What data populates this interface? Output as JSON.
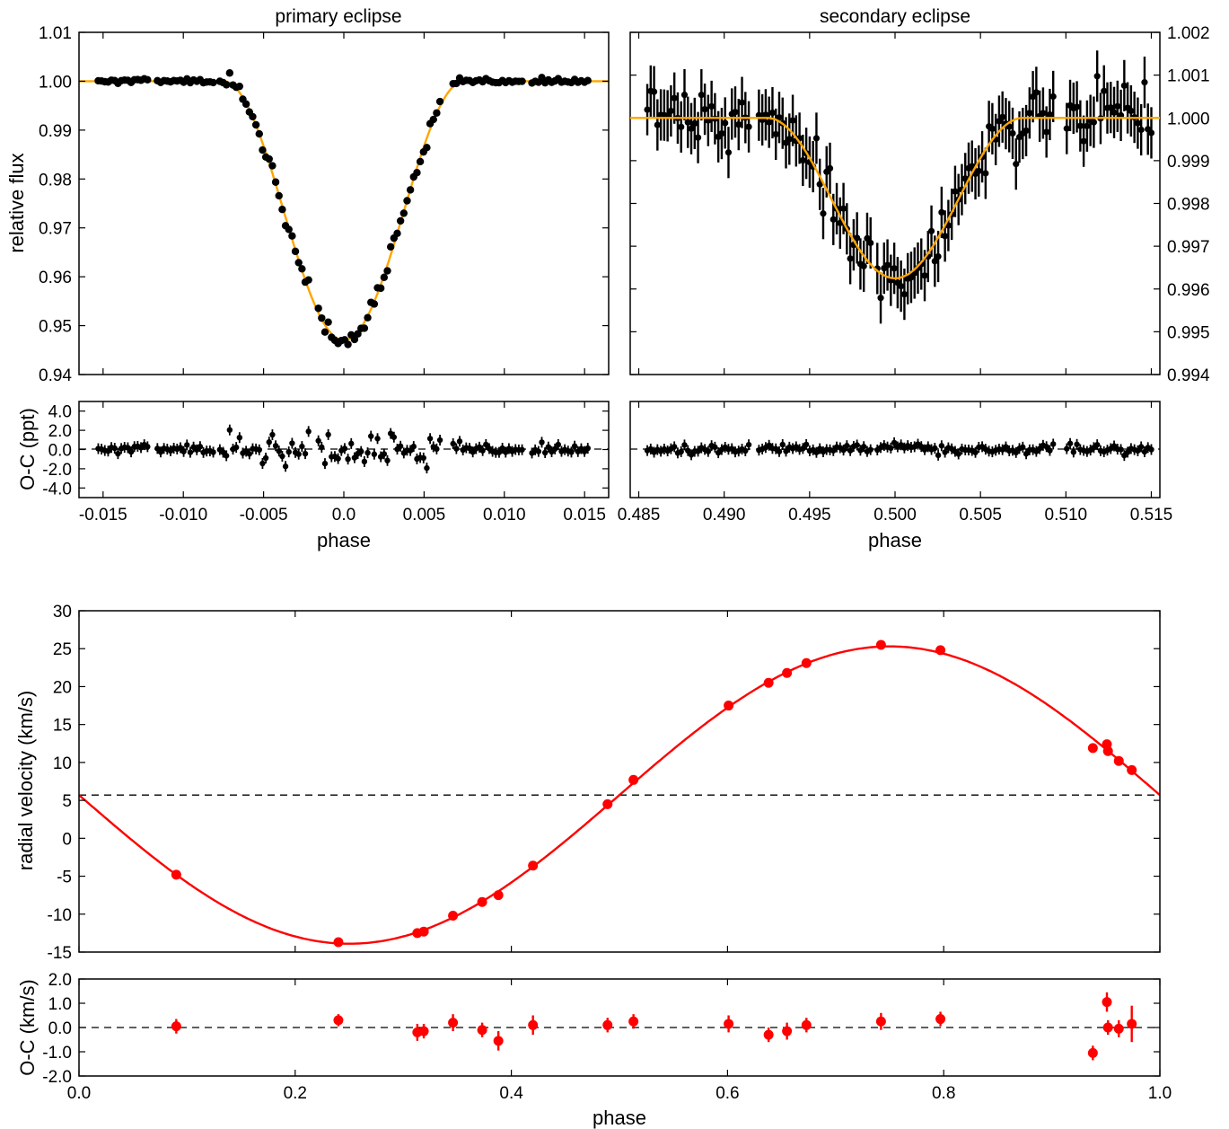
{
  "colors": {
    "model_orange": "#ffa500",
    "rv_red": "#ff0000",
    "points": "#000000"
  },
  "chart_data": [
    {
      "type": "scatter",
      "title": "primary eclipse",
      "xlabel": "phase",
      "ylabel": "relative flux",
      "xlim": [
        -0.0165,
        0.0165
      ],
      "ylim": [
        0.94,
        1.01
      ],
      "yticks": [
        "0.94",
        "0.95",
        "0.96",
        "0.97",
        "0.98",
        "0.99",
        "1.00",
        "1.01"
      ],
      "xticks": [
        "-0.015",
        "-0.010",
        "-0.005",
        "0.0",
        "0.005",
        "0.010",
        "0.015"
      ],
      "model": {
        "name": "eclipse model",
        "depth": 0.053,
        "center": 0.0,
        "half_width": 0.0075
      },
      "residual_panel": {
        "ylabel": "O-C (ppt)",
        "ylim": [
          -5,
          5
        ],
        "yticks": [
          "-4.0",
          "-2.0",
          "0.0",
          "2.0",
          "4.0"
        ]
      }
    },
    {
      "type": "scatter",
      "title": "secondary eclipse",
      "xlabel": "phase",
      "ylabel": "",
      "xlim": [
        0.4845,
        0.5155
      ],
      "ylim": [
        0.994,
        1.002
      ],
      "yticks": [
        "0.994",
        "0.995",
        "0.996",
        "0.997",
        "0.998",
        "0.999",
        "1.000",
        "1.001",
        "1.002"
      ],
      "xticks": [
        "0.485",
        "0.490",
        "0.495",
        "0.500",
        "0.505",
        "0.510",
        "0.515"
      ],
      "model": {
        "name": "eclipse model",
        "depth": 0.00375,
        "center": 0.5,
        "half_width": 0.0075
      },
      "residual_panel": {
        "ylabel": "",
        "ylim": [
          -5,
          5
        ]
      }
    },
    {
      "type": "scatter",
      "title": "",
      "xlabel": "phase",
      "ylabel": "radial velocity (km/s)",
      "xlim": [
        0.0,
        1.0
      ],
      "ylim": [
        -15,
        30
      ],
      "yticks": [
        "-15",
        "-10",
        "-5",
        "0",
        "5",
        "10",
        "15",
        "20",
        "25",
        "30"
      ],
      "xticks": [
        "0.0",
        "0.2",
        "0.4",
        "0.6",
        "0.8",
        "1.0"
      ],
      "gamma": 5.7,
      "model": {
        "name": "orbit model",
        "K": 19.6,
        "gamma": 5.7,
        "phase_of_max": 0.75
      },
      "points": {
        "x": [
          0.09,
          0.24,
          0.313,
          0.319,
          0.346,
          0.373,
          0.388,
          0.42,
          0.489,
          0.513,
          0.601,
          0.638,
          0.655,
          0.673,
          0.742,
          0.797,
          0.938,
          0.951,
          0.952,
          0.962,
          0.974
        ],
        "y": [
          -4.8,
          -13.7,
          -12.5,
          -12.3,
          -10.2,
          -8.4,
          -7.5,
          -3.6,
          4.5,
          7.7,
          17.5,
          20.5,
          21.8,
          23.1,
          25.5,
          24.8,
          11.9,
          12.4,
          11.5,
          10.2,
          9.0
        ]
      },
      "residual_panel": {
        "ylabel": "O-C (km/s)",
        "ylim": [
          -2.0,
          2.0
        ],
        "yticks": [
          "-2.0",
          "-1.0",
          "0.0",
          "1.0",
          "2.0"
        ],
        "x": [
          0.09,
          0.24,
          0.313,
          0.319,
          0.346,
          0.373,
          0.388,
          0.42,
          0.489,
          0.513,
          0.601,
          0.638,
          0.655,
          0.673,
          0.742,
          0.797,
          0.938,
          0.951,
          0.952,
          0.962,
          0.974
        ],
        "y": [
          0.05,
          0.3,
          -0.2,
          -0.15,
          0.2,
          -0.1,
          -0.55,
          0.1,
          0.1,
          0.25,
          0.15,
          -0.3,
          -0.15,
          0.1,
          0.25,
          0.35,
          -1.05,
          1.05,
          0.0,
          -0.05,
          0.15
        ],
        "err": [
          0.3,
          0.25,
          0.35,
          0.3,
          0.35,
          0.3,
          0.4,
          0.4,
          0.3,
          0.3,
          0.35,
          0.3,
          0.35,
          0.3,
          0.35,
          0.3,
          0.3,
          0.4,
          0.3,
          0.35,
          0.75
        ]
      }
    }
  ]
}
